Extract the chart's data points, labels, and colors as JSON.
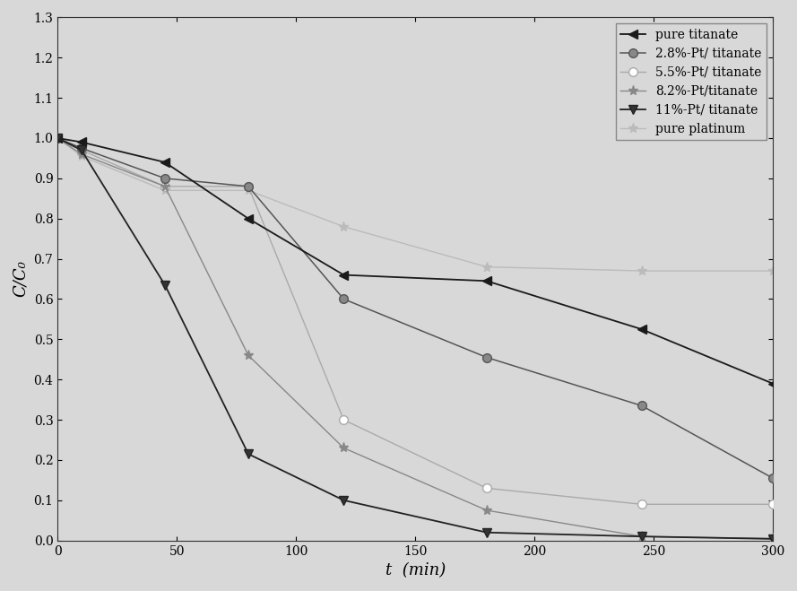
{
  "series": [
    {
      "label": "pure titanate",
      "x": [
        0,
        10,
        45,
        80,
        120,
        180,
        245,
        300
      ],
      "y": [
        1.0,
        0.99,
        0.94,
        0.8,
        0.66,
        0.645,
        0.525,
        0.39
      ],
      "color": "#1a1a1a",
      "linestyle": "-",
      "marker": "<",
      "markersize": 7,
      "linewidth": 1.3,
      "markerfacecolor": "#1a1a1a",
      "markeredgecolor": "#1a1a1a",
      "zorder": 5
    },
    {
      "label": "2.8%-Pt/ titanate",
      "x": [
        0,
        10,
        45,
        80,
        120,
        180,
        245,
        300
      ],
      "y": [
        1.0,
        0.975,
        0.9,
        0.88,
        0.6,
        0.455,
        0.335,
        0.155
      ],
      "color": "#555555",
      "linestyle": "-",
      "marker": "o",
      "markersize": 7,
      "linewidth": 1.1,
      "markerfacecolor": "#888888",
      "markeredgecolor": "#555555",
      "zorder": 4
    },
    {
      "label": "5.5%-Pt/ titanate",
      "x": [
        0,
        10,
        45,
        80,
        120,
        180,
        245,
        300
      ],
      "y": [
        1.0,
        0.97,
        0.88,
        0.88,
        0.3,
        0.13,
        0.09,
        0.09
      ],
      "color": "#aaaaaa",
      "linestyle": "-",
      "marker": "o",
      "markersize": 7,
      "linewidth": 1.0,
      "markerfacecolor": "#ffffff",
      "markeredgecolor": "#aaaaaa",
      "zorder": 3
    },
    {
      "label": "8.2%-Pt/titanate",
      "x": [
        0,
        10,
        45,
        80,
        120,
        180,
        245,
        300
      ],
      "y": [
        1.0,
        0.96,
        0.88,
        0.46,
        0.23,
        0.075,
        0.01,
        0.005
      ],
      "color": "#888888",
      "linestyle": "-",
      "marker": "*",
      "markersize": 8,
      "linewidth": 1.0,
      "markerfacecolor": "#888888",
      "markeredgecolor": "#888888",
      "zorder": 3
    },
    {
      "label": "11%-Pt/ titanate",
      "x": [
        0,
        10,
        45,
        80,
        120,
        180,
        245,
        300
      ],
      "y": [
        1.0,
        0.97,
        0.635,
        0.215,
        0.1,
        0.02,
        0.01,
        0.004
      ],
      "color": "#222222",
      "linestyle": "-",
      "marker": "v",
      "markersize": 7,
      "linewidth": 1.3,
      "markerfacecolor": "#333333",
      "markeredgecolor": "#222222",
      "zorder": 5
    },
    {
      "label": "pure platinum",
      "x": [
        0,
        10,
        45,
        80,
        120,
        180,
        245,
        300
      ],
      "y": [
        1.0,
        0.955,
        0.87,
        0.87,
        0.78,
        0.68,
        0.67,
        0.67
      ],
      "color": "#bbbbbb",
      "linestyle": "-",
      "marker": "*",
      "markersize": 8,
      "linewidth": 1.0,
      "markerfacecolor": "#bbbbbb",
      "markeredgecolor": "#bbbbbb",
      "zorder": 2
    }
  ],
  "xlabel": "t  (min)",
  "ylabel": "C/C₀",
  "xlim": [
    0,
    300
  ],
  "ylim": [
    0.0,
    1.3
  ],
  "yticks": [
    0.0,
    0.1,
    0.2,
    0.3,
    0.4,
    0.5,
    0.6,
    0.7,
    0.8,
    0.9,
    1.0,
    1.1,
    1.2,
    1.3
  ],
  "xticks": [
    0,
    50,
    100,
    150,
    200,
    250,
    300
  ],
  "legend_loc": "upper right",
  "background_color": "#d8d8d8",
  "figsize": [
    8.89,
    6.59
  ],
  "dpi": 100
}
